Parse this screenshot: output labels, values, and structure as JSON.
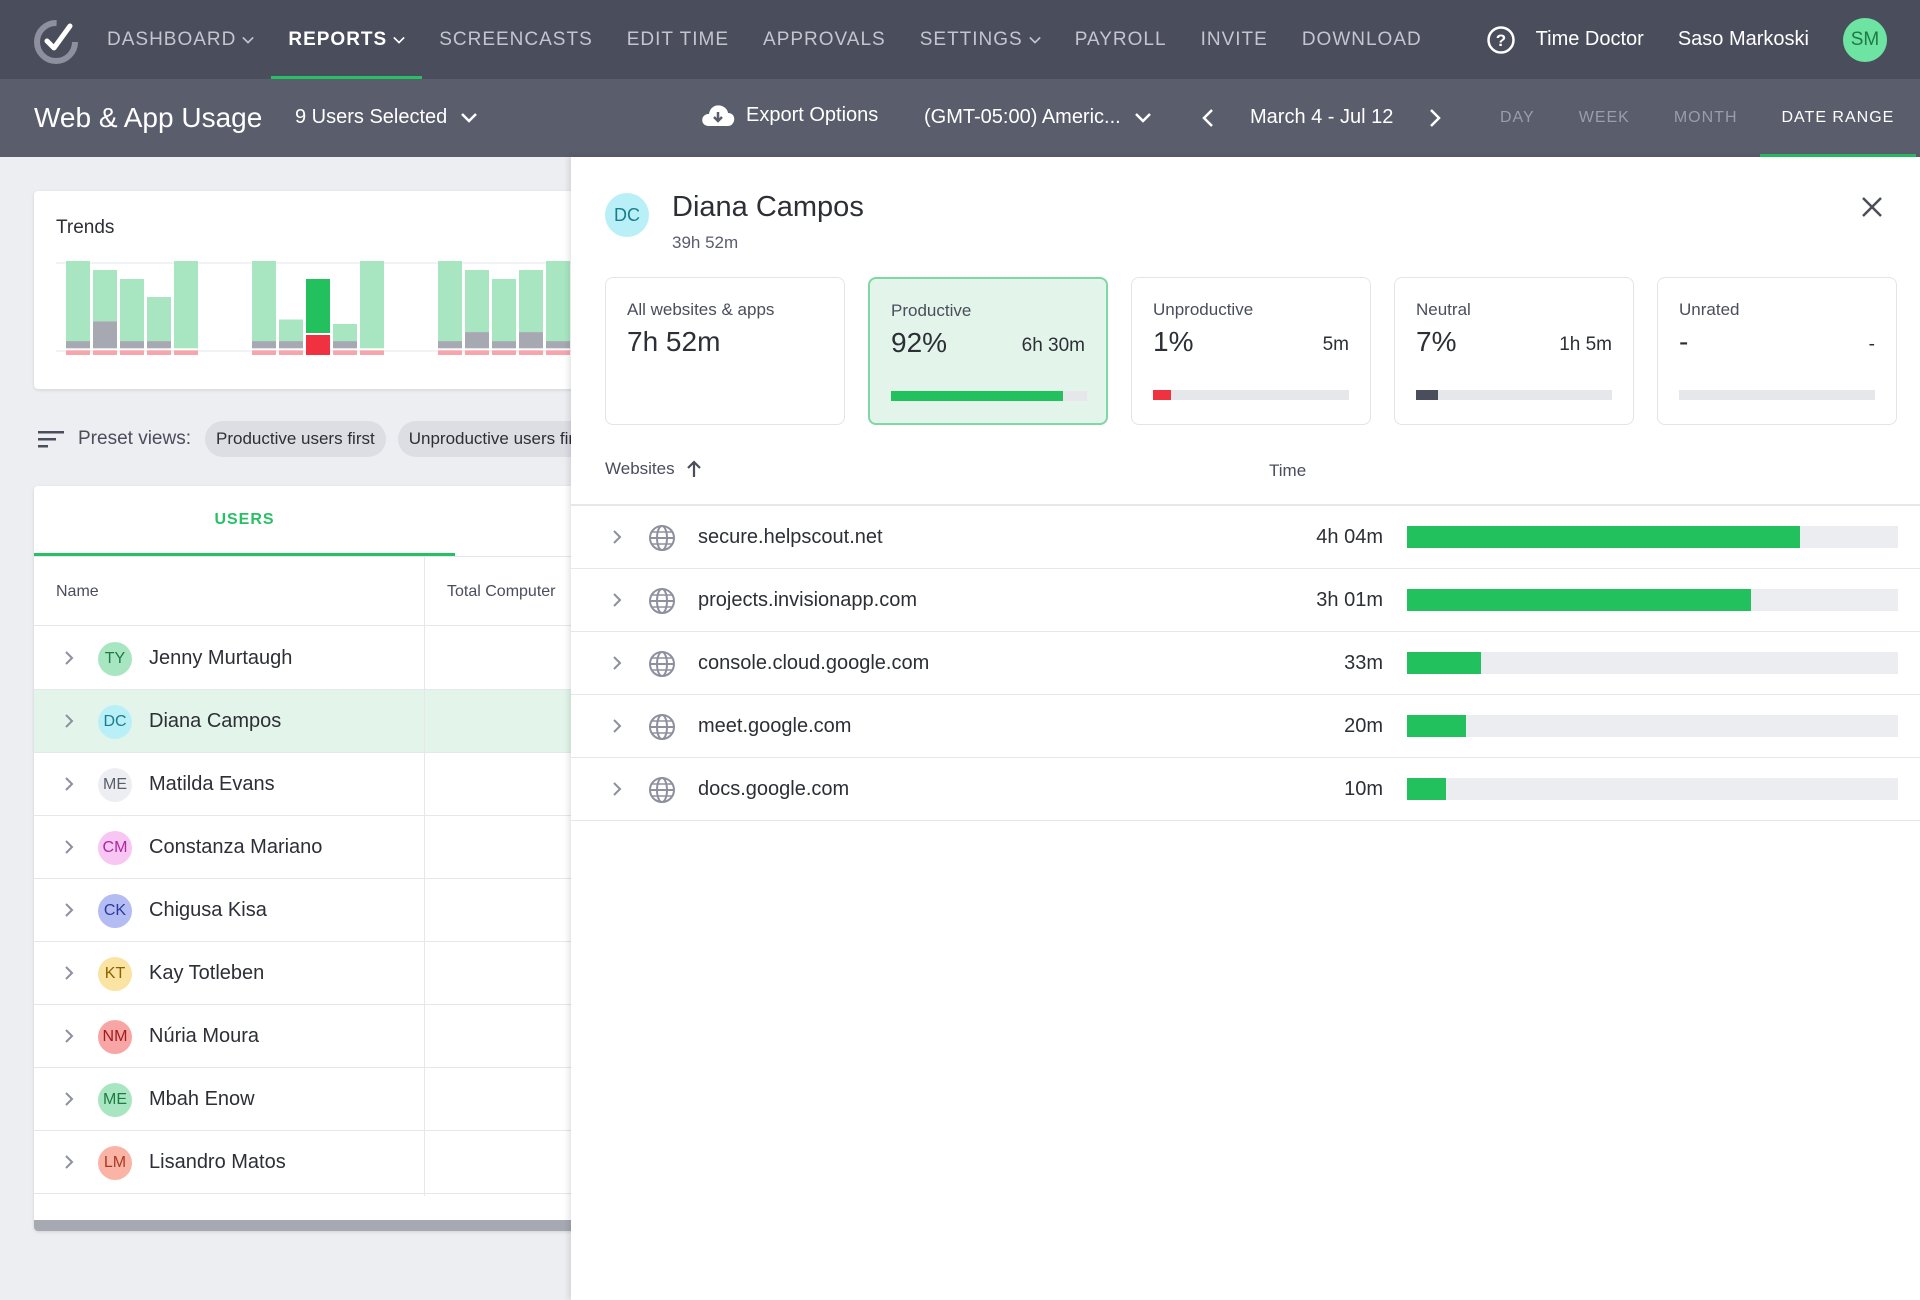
{
  "nav": {
    "items": [
      {
        "label": "DASHBOARD",
        "dropdown": true,
        "active": false
      },
      {
        "label": "REPORTS",
        "dropdown": true,
        "active": true
      },
      {
        "label": "SCREENCASTS",
        "dropdown": false,
        "active": false
      },
      {
        "label": "EDIT TIME",
        "dropdown": false,
        "active": false
      },
      {
        "label": "APPROVALS",
        "dropdown": false,
        "active": false
      },
      {
        "label": "SETTINGS",
        "dropdown": true,
        "active": false
      },
      {
        "label": "PAYROLL",
        "dropdown": false,
        "active": false
      },
      {
        "label": "INVITE",
        "dropdown": false,
        "active": false
      },
      {
        "label": "DOWNLOAD",
        "dropdown": false,
        "active": false
      }
    ],
    "org": "Time Doctor",
    "user": "Saso Markoski",
    "user_initials": "SM"
  },
  "subheader": {
    "title": "Web & App Usage",
    "users_selected": "9 Users Selected",
    "export": "Export Options",
    "timezone": "(GMT-05:00) Americ...",
    "date_range": "March 4 - Jul 12",
    "range_tabs": [
      {
        "label": "DAY",
        "active": false
      },
      {
        "label": "WEEK",
        "active": false
      },
      {
        "label": "MONTH",
        "active": false
      },
      {
        "label": "DATE RANGE",
        "active": true
      }
    ]
  },
  "trends": {
    "title": "Trends",
    "groups": [
      [
        [
          1,
          0.08,
          0.03
        ],
        [
          0.9,
          0.3,
          0.03
        ],
        [
          0.8,
          0.08,
          0.03
        ],
        [
          0.6,
          0.08,
          0.03
        ],
        [
          1,
          0,
          0.03
        ]
      ],
      [
        [
          1,
          0.08,
          0.03
        ],
        [
          0.35,
          0.08,
          0.03
        ],
        [
          0.8,
          0,
          0.2
        ],
        [
          0.3,
          0.08,
          0.03
        ],
        [
          1,
          0,
          0.03
        ]
      ],
      [
        [
          1,
          0.08,
          0.03
        ],
        [
          0.9,
          0.18,
          0.03
        ],
        [
          0.8,
          0.08,
          0.03
        ],
        [
          0.9,
          0.18,
          0.03
        ],
        [
          1,
          0.08,
          0.03
        ]
      ]
    ],
    "highlight": [
      1,
      2
    ]
  },
  "preset": {
    "label": "Preset views:",
    "chips": [
      "Productive users first",
      "Unproductive users first"
    ]
  },
  "users": {
    "tab": "USERS",
    "col_name": "Name",
    "col_total": "Total Computer",
    "rows": [
      {
        "initials": "TY",
        "name": "Jenny Murtaugh",
        "bg": "#a8e6c1",
        "fg": "#1f7a45",
        "selected": false
      },
      {
        "initials": "DC",
        "name": "Diana Campos",
        "bg": "#b9f0f7",
        "fg": "#1a7d8c",
        "selected": true
      },
      {
        "initials": "ME",
        "name": "Matilda Evans",
        "bg": "#eceef2",
        "fg": "#5a5d6b",
        "selected": false
      },
      {
        "initials": "CM",
        "name": "Constanza Mariano",
        "bg": "#f7c6f2",
        "fg": "#b0279f",
        "selected": false
      },
      {
        "initials": "CK",
        "name": "Chigusa Kisa",
        "bg": "#b3bcf3",
        "fg": "#2e3a9e",
        "selected": false
      },
      {
        "initials": "KT",
        "name": "Kay Totleben",
        "bg": "#fbe3a2",
        "fg": "#8a6200",
        "selected": false
      },
      {
        "initials": "NM",
        "name": "Núria Moura",
        "bg": "#f7a5a5",
        "fg": "#a01d1d",
        "selected": false
      },
      {
        "initials": "ME",
        "name": "Mbah Enow",
        "bg": "#a8e6c1",
        "fg": "#1f7a45",
        "selected": false
      },
      {
        "initials": "LM",
        "name": "Lisandro Matos",
        "bg": "#f9b4a6",
        "fg": "#a83a22",
        "selected": false
      }
    ]
  },
  "panel": {
    "initials": "DC",
    "name": "Diana Campos",
    "total": "39h 52m",
    "stats": [
      {
        "label": "All websites & apps",
        "value": "7h 52m",
        "time": "",
        "fraction": null,
        "color": "",
        "active": false
      },
      {
        "label": "Productive",
        "value": "92%",
        "time": "6h 30m",
        "fraction": 0.88,
        "color": "#22c15e",
        "active": true
      },
      {
        "label": "Unproductive",
        "value": "1%",
        "time": "5m",
        "fraction": 0.09,
        "color": "#f0313f",
        "active": false
      },
      {
        "label": "Neutral",
        "value": "7%",
        "time": "1h 5m",
        "fraction": 0.11,
        "color": "#4a4d5b",
        "active": false
      },
      {
        "label": "Unrated",
        "value": "-",
        "time": "-",
        "fraction": 0,
        "color": "",
        "active": false
      }
    ],
    "list_head": "Websites",
    "time_head": "Time",
    "sites": [
      {
        "name": "secure.helpscout.net",
        "time": "4h 04m",
        "fraction": 0.8
      },
      {
        "name": "projects.invisionapp.com",
        "time": "3h 01m",
        "fraction": 0.7
      },
      {
        "name": "console.cloud.google.com",
        "time": "33m",
        "fraction": 0.15
      },
      {
        "name": "meet.google.com",
        "time": "20m",
        "fraction": 0.12
      },
      {
        "name": "docs.google.com",
        "time": "10m",
        "fraction": 0.08
      }
    ]
  }
}
